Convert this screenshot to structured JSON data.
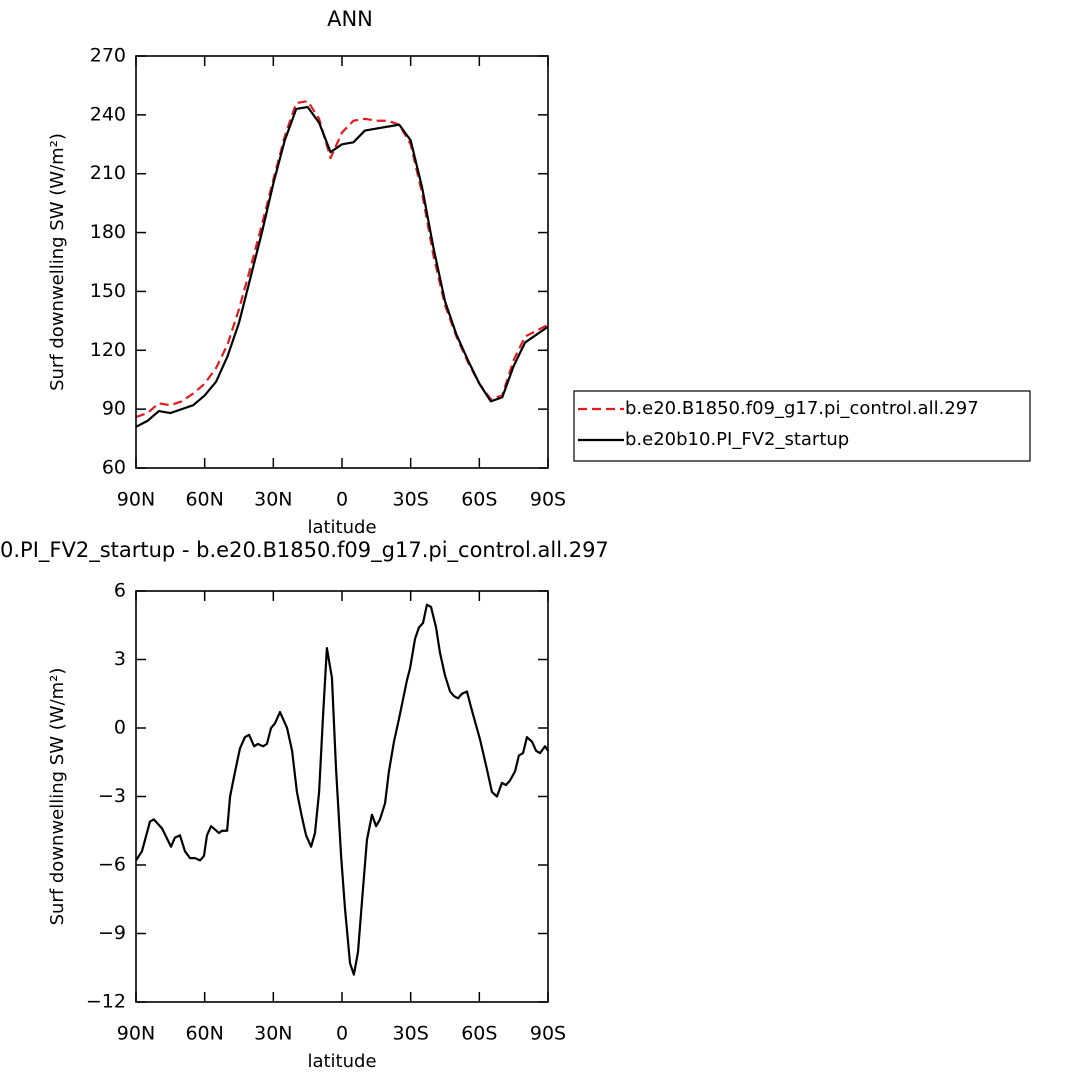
{
  "chart_data": [
    {
      "type": "line",
      "title": "ANN",
      "xlabel": "latitude",
      "ylabel": "Surf downwelling SW (W/m²)",
      "x": [
        90,
        85,
        80,
        75,
        70,
        65,
        60,
        55,
        50,
        45,
        40,
        35,
        30,
        25,
        20,
        15,
        10,
        5,
        0,
        -5,
        -10,
        -15,
        -20,
        -25,
        -30,
        -35,
        -40,
        -45,
        -50,
        -55,
        -60,
        -65,
        -70,
        -75,
        -80,
        -85,
        -90
      ],
      "series": [
        {
          "name": "b.e20.B1850.f09_g17.pi_control.all.297",
          "color": "#e41a1c",
          "linestyle": "dashed",
          "values": [
            86,
            88,
            93,
            92,
            94,
            98,
            103,
            111,
            123,
            141,
            162,
            184,
            207,
            229,
            246,
            247,
            238,
            218,
            231,
            237,
            238,
            237,
            237,
            235,
            225,
            200,
            168,
            143,
            127,
            114,
            103,
            95,
            97,
            115,
            127,
            130,
            133
          ]
        },
        {
          "name": "b.e20b10.PI_FV2_startup",
          "color": "#000000",
          "linestyle": "solid",
          "values": [
            81,
            84,
            89,
            88,
            90,
            92,
            97,
            104,
            117,
            134,
            157,
            180,
            205,
            227,
            243,
            244,
            236,
            221,
            225,
            226,
            232,
            233,
            234,
            235,
            227,
            203,
            172,
            145,
            128,
            115,
            103,
            94,
            96,
            112,
            124,
            128,
            132
          ]
        }
      ],
      "xlim": [
        90,
        -90
      ],
      "xticks": [
        {
          "value": 90,
          "label": "90N"
        },
        {
          "value": 60,
          "label": "60N"
        },
        {
          "value": 30,
          "label": "30N"
        },
        0,
        {
          "value": -30,
          "label": "30S"
        },
        {
          "value": -60,
          "label": "60S"
        },
        {
          "value": -90,
          "label": "90S"
        }
      ],
      "ylim": [
        60,
        270
      ],
      "yticks": [
        60,
        90,
        120,
        150,
        180,
        210,
        240,
        270
      ],
      "legend": "right"
    },
    {
      "type": "line",
      "title": "0.PI_FV2_startup - b.e20.B1850.f09_g17.pi_control.all.297",
      "xlabel": "latitude",
      "ylabel": "Surf downwelling SW (W/m²)",
      "x": [
        90,
        87.4,
        83.9,
        82.2,
        78.6,
        74.7,
        73,
        70.8,
        68.6,
        66.4,
        64.2,
        62,
        60.3,
        59,
        57.2,
        53.7,
        52.4,
        50.2,
        48.9,
        46.7,
        44.6,
        42.4,
        40.6,
        38.4,
        36.7,
        34.5,
        32.8,
        31,
        29.3,
        27.1,
        24,
        21.8,
        19.7,
        17.5,
        15.7,
        13.5,
        11.8,
        10,
        8.3,
        6.6,
        4.4,
        2.6,
        0.4,
        -1.3,
        -3.5,
        -5.2,
        -7,
        -9.2,
        -10.9,
        -13.1,
        -14.9,
        -16.6,
        -18.8,
        -20.5,
        -22.7,
        -24.9,
        -28.4,
        -29.7,
        -31.9,
        -33.6,
        -35.4,
        -37.1,
        -38.9,
        -41.1,
        -42.8,
        -45,
        -47.2,
        -48.9,
        -50.7,
        -52.4,
        -54.6,
        -56.4,
        -60.3,
        -63.3,
        -65.5,
        -67.7,
        -69.9,
        -71.6,
        -73.4,
        -75.6,
        -77.3,
        -79.1,
        -80.8,
        -83,
        -84.8,
        -86.5,
        -88.7,
        -90
      ],
      "values": [
        -5.8,
        -5.4,
        -4.1,
        -4.0,
        -4.4,
        -5.2,
        -4.8,
        -4.7,
        -5.4,
        -5.7,
        -5.7,
        -5.8,
        -5.6,
        -4.7,
        -4.3,
        -4.6,
        -4.5,
        -4.5,
        -3.0,
        -1.9,
        -0.9,
        -0.4,
        -0.3,
        -0.8,
        -0.7,
        -0.8,
        -0.7,
        0.0,
        0.2,
        0.7,
        0.0,
        -1.0,
        -2.8,
        -3.9,
        -4.7,
        -5.2,
        -4.6,
        -2.8,
        0.5,
        3.5,
        2.2,
        -1.8,
        -5.6,
        -7.9,
        -10.3,
        -10.8,
        -9.8,
        -7.0,
        -4.9,
        -3.8,
        -4.3,
        -4.0,
        -3.3,
        -1.9,
        -0.6,
        0.4,
        2.1,
        2.6,
        3.9,
        4.4,
        4.6,
        5.4,
        5.3,
        4.4,
        3.3,
        2.3,
        1.6,
        1.4,
        1.3,
        1.5,
        1.6,
        0.9,
        -0.5,
        -1.8,
        -2.8,
        -3.0,
        -2.4,
        -2.5,
        -2.3,
        -1.9,
        -1.2,
        -1.1,
        -0.4,
        -0.6,
        -1.0,
        -1.1,
        -0.8,
        -1.0
      ],
      "color": "#000000",
      "xlim": [
        90,
        -90
      ],
      "xticks": [
        {
          "value": 90,
          "label": "90N"
        },
        {
          "value": 60,
          "label": "60N"
        },
        {
          "value": 30,
          "label": "30N"
        },
        0,
        {
          "value": -30,
          "label": "30S"
        },
        {
          "value": -60,
          "label": "60S"
        },
        {
          "value": -90,
          "label": "90S"
        }
      ],
      "ylim": [
        -12,
        6
      ],
      "yticks": [
        {
          "value": -12,
          "label": "−12"
        },
        {
          "value": -9,
          "label": "−9"
        },
        {
          "value": -6,
          "label": "−6"
        },
        {
          "value": -3,
          "label": "−3"
        },
        0,
        3,
        6
      ]
    }
  ]
}
